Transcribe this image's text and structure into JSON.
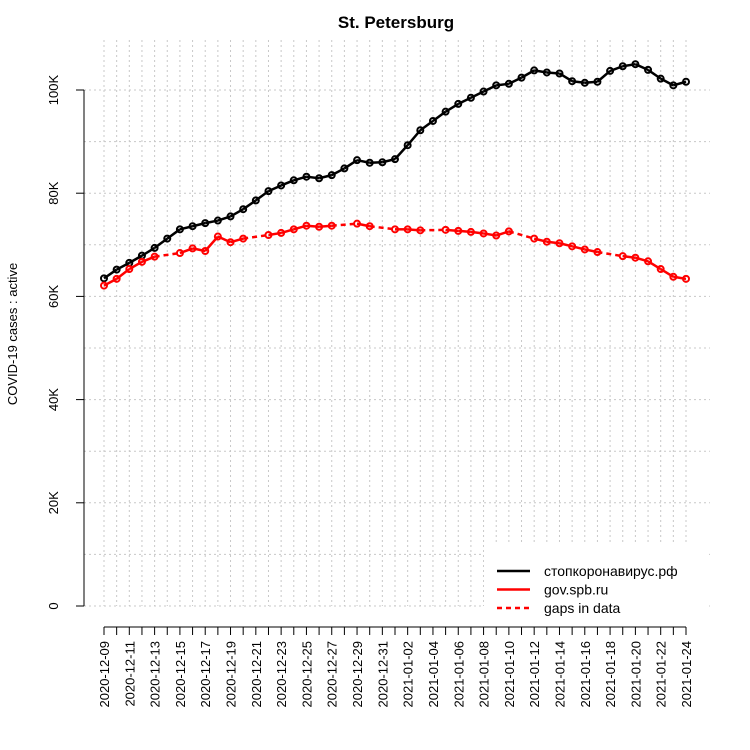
{
  "chart_data": {
    "type": "line",
    "title": "St. Petersburg",
    "xlabel": "",
    "ylabel": "COVID-19 cases : active",
    "ylim": [
      0,
      110000
    ],
    "y_ticks": [
      {
        "value": 0,
        "label": "0"
      },
      {
        "value": 20000,
        "label": "20K"
      },
      {
        "value": 40000,
        "label": "40K"
      },
      {
        "value": 60000,
        "label": "60K"
      },
      {
        "value": 80000,
        "label": "80K"
      },
      {
        "value": 100000,
        "label": "100K"
      }
    ],
    "grid": true,
    "legend_position": "bottom-right",
    "x_dates": [
      "2020-12-09",
      "2020-12-10",
      "2020-12-11",
      "2020-12-12",
      "2020-12-13",
      "2020-12-14",
      "2020-12-15",
      "2020-12-16",
      "2020-12-17",
      "2020-12-18",
      "2020-12-19",
      "2020-12-20",
      "2020-12-21",
      "2020-12-22",
      "2020-12-23",
      "2020-12-24",
      "2020-12-25",
      "2020-12-26",
      "2020-12-27",
      "2020-12-28",
      "2020-12-29",
      "2020-12-30",
      "2020-12-31",
      "2021-01-01",
      "2021-01-02",
      "2021-01-03",
      "2021-01-04",
      "2021-01-05",
      "2021-01-06",
      "2021-01-07",
      "2021-01-08",
      "2021-01-09",
      "2021-01-10",
      "2021-01-11",
      "2021-01-12",
      "2021-01-13",
      "2021-01-14",
      "2021-01-15",
      "2021-01-16",
      "2021-01-17",
      "2021-01-18",
      "2021-01-19",
      "2021-01-20",
      "2021-01-21",
      "2021-01-22",
      "2021-01-23",
      "2021-01-24"
    ],
    "x_tick_labels": [
      "2020-12-09",
      "2020-12-11",
      "2020-12-13",
      "2020-12-15",
      "2020-12-17",
      "2020-12-19",
      "2020-12-21",
      "2020-12-23",
      "2020-12-25",
      "2020-12-27",
      "2020-12-29",
      "2020-12-31",
      "2021-01-02",
      "2021-01-04",
      "2021-01-06",
      "2021-01-08",
      "2021-01-10",
      "2021-01-12",
      "2021-01-14",
      "2021-01-16",
      "2021-01-18",
      "2021-01-20",
      "2021-01-22",
      "2021-01-24"
    ],
    "series": [
      {
        "name": "стопкоронавирус.рф",
        "color": "#000000",
        "values": [
          63500,
          65200,
          66500,
          67900,
          69400,
          71200,
          73000,
          73600,
          74200,
          74700,
          75500,
          76900,
          78600,
          80400,
          81500,
          82500,
          83200,
          82900,
          83500,
          84800,
          86400,
          85900,
          86000,
          86600,
          89300,
          92200,
          94000,
          95800,
          97300,
          98500,
          99700,
          100900,
          101200,
          102400,
          103800,
          103400,
          103200,
          101700,
          101400,
          101600,
          103700,
          104600,
          105000,
          103900,
          102200,
          100900,
          101600
        ],
        "dashed_segments_after_index": []
      },
      {
        "name": "gov.spb.ru",
        "color": "#ff0000",
        "values": [
          62100,
          63400,
          65300,
          66700,
          67700,
          null,
          68400,
          69300,
          68800,
          71600,
          70500,
          71200,
          null,
          71900,
          72300,
          73000,
          73700,
          73500,
          73700,
          null,
          74100,
          73600,
          null,
          73000,
          73000,
          72800,
          null,
          72900,
          72700,
          72500,
          72200,
          71800,
          72600,
          null,
          71200,
          70600,
          70300,
          69700,
          69100,
          68600,
          null,
          67800,
          67500,
          66800,
          65300,
          63800,
          63400
        ],
        "dashed_segments_after_index": []
      }
    ],
    "legend": [
      {
        "label": "стопкоронавирус.рф",
        "color": "#000000",
        "style": "solid"
      },
      {
        "label": "gov.spb.ru",
        "color": "#ff0000",
        "style": "solid"
      },
      {
        "label": "gaps in data",
        "color": "#ff0000",
        "style": "dashed"
      }
    ]
  }
}
